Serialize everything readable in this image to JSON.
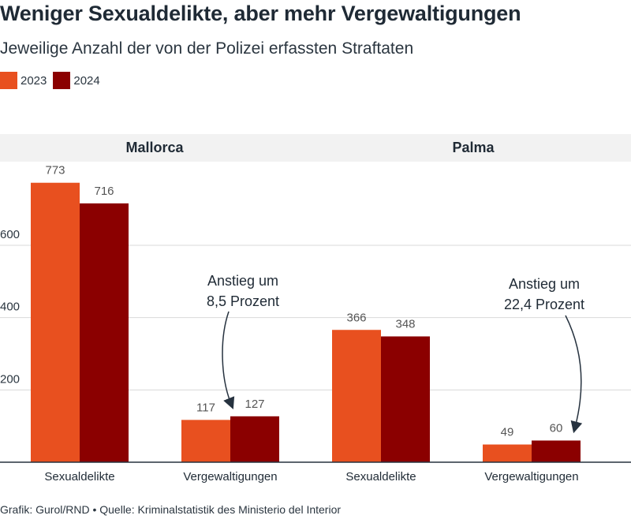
{
  "title": "Weniger Sexualdelikte, aber mehr Vergewaltigungen",
  "subtitle": "Jeweilige Anzahl der von der Polizei erfassten Straftaten",
  "footer": "Grafik: Gurol/RND • Quelle: Kriminalstatistik des Ministerio del Interior",
  "colors": {
    "2023": "#e8501f",
    "2024": "#8b0000"
  },
  "chart_data": {
    "type": "bar",
    "ylim": [
      0,
      840
    ],
    "yticks": [
      200,
      400,
      600
    ],
    "legend": [
      "2023",
      "2024"
    ],
    "legend_position": "top-left",
    "grid": true,
    "panels": [
      {
        "title": "Mallorca",
        "categories": [
          "Sexualdelikte",
          "Vergewaltigungen"
        ],
        "series": [
          {
            "name": "2023",
            "values": [
              773,
              117
            ]
          },
          {
            "name": "2024",
            "values": [
              716,
              127
            ]
          }
        ]
      },
      {
        "title": "Palma",
        "categories": [
          "Sexualdelikte",
          "Vergewaltigungen"
        ],
        "series": [
          {
            "name": "2023",
            "values": [
              366,
              49
            ]
          },
          {
            "name": "2024",
            "values": [
              348,
              60
            ]
          }
        ]
      }
    ],
    "annotations": [
      {
        "panel": 0,
        "category": 1,
        "lines": [
          "Anstieg um",
          "8,5 Prozent"
        ]
      },
      {
        "panel": 1,
        "category": 1,
        "lines": [
          "Anstieg um",
          "22,4 Prozent"
        ]
      }
    ]
  }
}
